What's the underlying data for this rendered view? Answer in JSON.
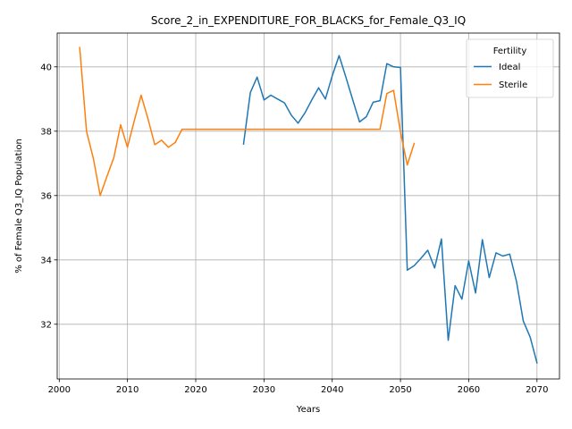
{
  "chart_data": {
    "type": "line",
    "title": "Score_2_in_EXPENDITURE_FOR_BLACKS_for_Female_Q3_IQ",
    "xlabel": "Years",
    "ylabel": "% of Female Q3_IQ Population",
    "xlim": [
      1999.7,
      2073.3
    ],
    "ylim": [
      30.3,
      41.05
    ],
    "xticks": [
      2000,
      2010,
      2020,
      2030,
      2040,
      2050,
      2060,
      2070
    ],
    "yticks": [
      32,
      34,
      36,
      38,
      40
    ],
    "grid": true,
    "legend": {
      "title": "Fertility",
      "placement": "top-right"
    },
    "series": [
      {
        "name": "Ideal",
        "color": "#1f77b4",
        "x": [
          2027,
          2028,
          2029,
          2030,
          2031,
          2032,
          2033,
          2034,
          2035,
          2036,
          2037,
          2038,
          2039,
          2040,
          2041,
          2042,
          2043,
          2044,
          2045,
          2046,
          2047,
          2048,
          2049,
          2050,
          2051,
          2052,
          2053,
          2054,
          2055,
          2056,
          2057,
          2058,
          2059,
          2060,
          2061,
          2062,
          2063,
          2064,
          2065,
          2066,
          2067,
          2068,
          2069,
          2070
        ],
        "y": [
          37.6,
          39.2,
          39.68,
          38.97,
          39.12,
          39.0,
          38.88,
          38.5,
          38.25,
          38.57,
          38.97,
          39.35,
          39.0,
          39.72,
          40.35,
          39.68,
          38.98,
          38.29,
          38.45,
          38.9,
          38.95,
          40.1,
          40.0,
          39.98,
          33.68,
          33.82,
          34.05,
          34.3,
          33.75,
          34.65,
          31.5,
          33.2,
          32.78,
          33.97,
          32.97,
          34.63,
          33.45,
          34.22,
          34.12,
          34.18,
          33.33,
          32.1,
          31.6,
          30.8
        ]
      },
      {
        "name": "Sterile",
        "color": "#ff7f0e",
        "x": [
          2003,
          2004,
          2005,
          2006,
          2007,
          2008,
          2009,
          2010,
          2011,
          2012,
          2013,
          2014,
          2015,
          2016,
          2017,
          2018,
          2019,
          2020,
          2021,
          2022,
          2023,
          2024,
          2025,
          2026,
          2027,
          2028,
          2029,
          2030,
          2031,
          2032,
          2033,
          2034,
          2035,
          2036,
          2037,
          2038,
          2039,
          2040,
          2041,
          2042,
          2043,
          2044,
          2045,
          2046,
          2047,
          2048,
          2049,
          2050,
          2051,
          2052
        ],
        "y": [
          40.6,
          38.0,
          37.15,
          36.0,
          36.6,
          37.18,
          38.2,
          37.5,
          38.33,
          39.12,
          38.38,
          37.58,
          37.72,
          37.5,
          37.65,
          38.06,
          38.06,
          38.06,
          38.06,
          38.06,
          38.06,
          38.06,
          38.06,
          38.06,
          38.06,
          38.06,
          38.06,
          38.06,
          38.06,
          38.06,
          38.06,
          38.06,
          38.06,
          38.06,
          38.06,
          38.06,
          38.06,
          38.06,
          38.06,
          38.06,
          38.06,
          38.06,
          38.06,
          38.06,
          38.06,
          39.17,
          39.27,
          37.97,
          36.95,
          37.62
        ]
      }
    ]
  }
}
